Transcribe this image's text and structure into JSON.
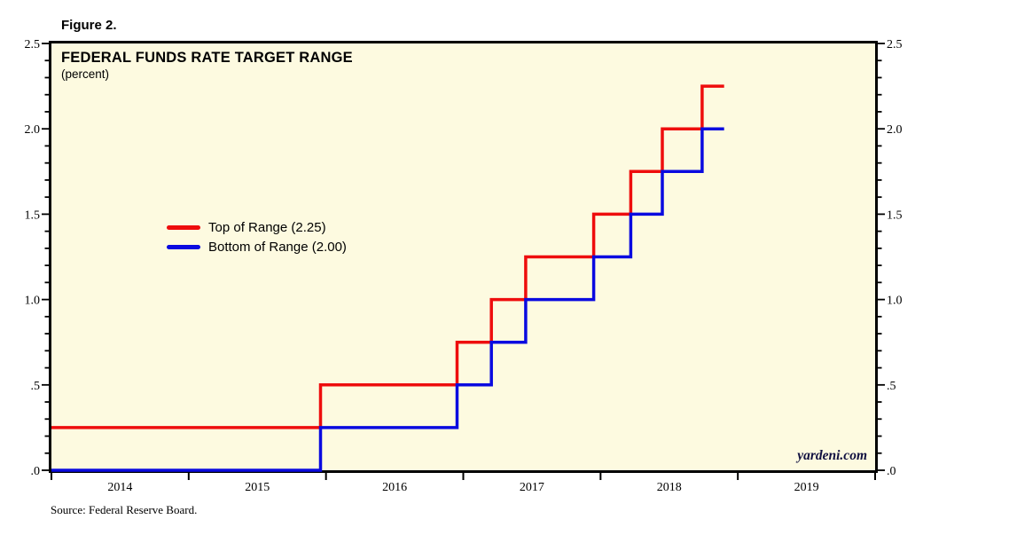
{
  "figure_label": "Figure 2.",
  "chart": {
    "title": "FEDERAL FUNDS RATE TARGET RANGE",
    "subtitle": "(percent)",
    "watermark": "yardeni.com",
    "source": "Source: Federal Reserve Board."
  },
  "legend": {
    "items": [
      {
        "label": "Top of Range (2.25)",
        "color": "#ee0d0d"
      },
      {
        "label": "Bottom of Range (2.00)",
        "color": "#0a0ae0"
      }
    ]
  },
  "colors": {
    "plot_bg": "#fdfae0",
    "axis": "#000000",
    "top_line": "#ee0d0d",
    "bottom_line": "#0a0ae0",
    "watermark": "#101040"
  },
  "chart_data": {
    "type": "line",
    "subtype": "step",
    "title": "FEDERAL FUNDS RATE TARGET RANGE",
    "ylabel": "percent",
    "legend_position": "upper-left-inside",
    "grid": false,
    "x_axis": {
      "range": [
        2014,
        2020
      ],
      "tick_years": [
        2014,
        2015,
        2016,
        2017,
        2018,
        2019,
        2020
      ],
      "year_labels": [
        "2014",
        "2015",
        "2016",
        "2017",
        "2018",
        "2019"
      ]
    },
    "y_axis": {
      "range": [
        0,
        2.5
      ],
      "major_tick_interval": 0.5,
      "minor_tick_interval": 0.1,
      "sides": [
        "left",
        "right"
      ],
      "tick_labels": [
        {
          "value": 2.5,
          "label": "2.5"
        },
        {
          "value": 2.0,
          "label": "2.0"
        },
        {
          "value": 1.5,
          "label": "1.5"
        },
        {
          "value": 1.0,
          "label": "1.0"
        },
        {
          "value": 0.5,
          "label": ".5"
        },
        {
          "value": 0.0,
          "label": ".0"
        }
      ]
    },
    "rate_hikes": [
      {
        "date": "Dec 2015",
        "x": 2015.96,
        "top": 0.5,
        "bottom": 0.25
      },
      {
        "date": "Dec 2016",
        "x": 2016.955,
        "top": 0.75,
        "bottom": 0.5
      },
      {
        "date": "Mar 2017",
        "x": 2017.205,
        "top": 1.0,
        "bottom": 0.75
      },
      {
        "date": "Jun 2017",
        "x": 2017.455,
        "top": 1.25,
        "bottom": 1.0
      },
      {
        "date": "Dec 2017",
        "x": 2017.95,
        "top": 1.5,
        "bottom": 1.25
      },
      {
        "date": "Mar 2018",
        "x": 2018.22,
        "top": 1.75,
        "bottom": 1.5
      },
      {
        "date": "Jun 2018",
        "x": 2018.45,
        "top": 2.0,
        "bottom": 1.75
      },
      {
        "date": "Sep 2018",
        "x": 2018.74,
        "top": 2.25,
        "bottom": 2.0
      }
    ],
    "series": [
      {
        "name": "Top of Range (2.25)",
        "color": "#ee0d0d",
        "points": [
          [
            2014.0,
            0.25
          ],
          [
            2015.96,
            0.25
          ],
          [
            2015.96,
            0.5
          ],
          [
            2016.955,
            0.5
          ],
          [
            2016.955,
            0.75
          ],
          [
            2017.205,
            0.75
          ],
          [
            2017.205,
            1.0
          ],
          [
            2017.455,
            1.0
          ],
          [
            2017.455,
            1.25
          ],
          [
            2017.95,
            1.25
          ],
          [
            2017.95,
            1.5
          ],
          [
            2018.22,
            1.5
          ],
          [
            2018.22,
            1.75
          ],
          [
            2018.45,
            1.75
          ],
          [
            2018.45,
            2.0
          ],
          [
            2018.74,
            2.0
          ],
          [
            2018.74,
            2.25
          ],
          [
            2018.9,
            2.25
          ]
        ]
      },
      {
        "name": "Bottom of Range (2.00)",
        "color": "#0a0ae0",
        "points": [
          [
            2014.0,
            0.0
          ],
          [
            2015.96,
            0.0
          ],
          [
            2015.96,
            0.25
          ],
          [
            2016.955,
            0.25
          ],
          [
            2016.955,
            0.5
          ],
          [
            2017.205,
            0.5
          ],
          [
            2017.205,
            0.75
          ],
          [
            2017.455,
            0.75
          ],
          [
            2017.455,
            1.0
          ],
          [
            2017.95,
            1.0
          ],
          [
            2017.95,
            1.25
          ],
          [
            2018.22,
            1.25
          ],
          [
            2018.22,
            1.5
          ],
          [
            2018.45,
            1.5
          ],
          [
            2018.45,
            1.75
          ],
          [
            2018.74,
            1.75
          ],
          [
            2018.74,
            2.0
          ],
          [
            2018.9,
            2.0
          ]
        ]
      }
    ]
  }
}
